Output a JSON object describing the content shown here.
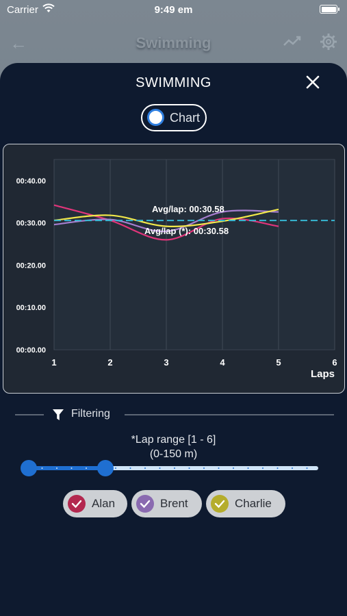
{
  "status": {
    "carrier": "Carrier",
    "time": "9:49 em"
  },
  "background_nav": {
    "title": "Swimming",
    "back_icon": "back-arrow-icon",
    "trend_icon": "trend-icon",
    "settings_icon": "gear-icon"
  },
  "sheet": {
    "title": "SWIMMING",
    "close_icon": "close-icon",
    "view_toggle_label": "Chart"
  },
  "chart_data": {
    "type": "line",
    "x": [
      1,
      2,
      3,
      4,
      5
    ],
    "xticks": [
      "1",
      "2",
      "3",
      "4",
      "5",
      "6"
    ],
    "yticks": [
      "00:00.00",
      "00:10.00",
      "00:20.00",
      "00:30.00",
      "00:40.00"
    ],
    "xlabel": "Laps",
    "ylabel": "",
    "xlim": [
      1,
      6
    ],
    "ylim": [
      0,
      45
    ],
    "grid": true,
    "series": [
      {
        "name": "Alan",
        "color": "#e0357a",
        "values": [
          34.2,
          30.6,
          26.0,
          31.0,
          29.2
        ]
      },
      {
        "name": "Brent",
        "color": "#a77fd0",
        "values": [
          29.6,
          30.8,
          28.0,
          32.6,
          32.6
        ]
      },
      {
        "name": "Charlie",
        "color": "#f2e84a",
        "values": [
          30.6,
          31.8,
          29.2,
          30.4,
          33.2
        ]
      }
    ],
    "reference_line": {
      "value": 30.58,
      "color": "#36b8d4",
      "style": "dashed"
    },
    "annotations": [
      {
        "text": "Avg/lap: 00:30.58"
      },
      {
        "text": "Avg/lap (*): 00:30.58"
      }
    ]
  },
  "filtering": {
    "label": "Filtering",
    "icon": "funnel-icon",
    "range_label": "*Lap range [1 - 6]",
    "range_sub": "(0-150 m)",
    "slider": {
      "min": 1,
      "max": 6,
      "low": 1,
      "high": 2
    },
    "swimmers": [
      {
        "name": "Alan",
        "color": "#b3284f",
        "checked": true
      },
      {
        "name": "Brent",
        "color": "#8a6ab0",
        "checked": true
      },
      {
        "name": "Charlie",
        "color": "#b5ad2c",
        "checked": true
      }
    ]
  }
}
